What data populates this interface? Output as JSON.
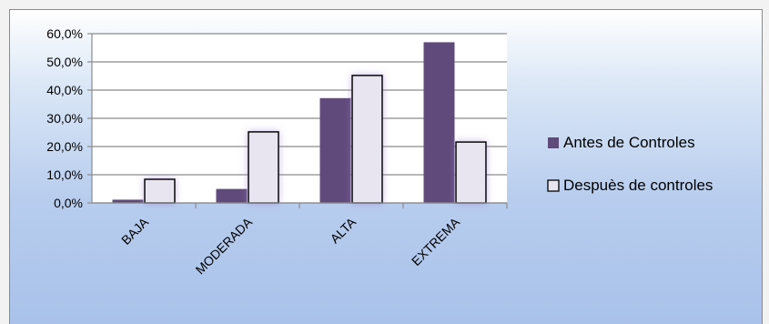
{
  "chart_data": {
    "type": "bar",
    "categories": [
      "BAJA",
      "MODERADA",
      "ALTA",
      "EXTREMA"
    ],
    "series": [
      {
        "name": "Antes de Controles",
        "values": [
          1.0,
          4.8,
          37.0,
          56.8
        ],
        "color": "#604a7b"
      },
      {
        "name": "Despuès de controles",
        "values": [
          8.4,
          25.2,
          45.2,
          21.6
        ],
        "color": "#e8e4f0"
      }
    ],
    "ylim": [
      0,
      60
    ],
    "yticks": [
      "0,0%",
      "10,0%",
      "20,0%",
      "30,0%",
      "40,0%",
      "50,0%",
      "60,0%"
    ],
    "grid": true,
    "legend_position": "right"
  }
}
